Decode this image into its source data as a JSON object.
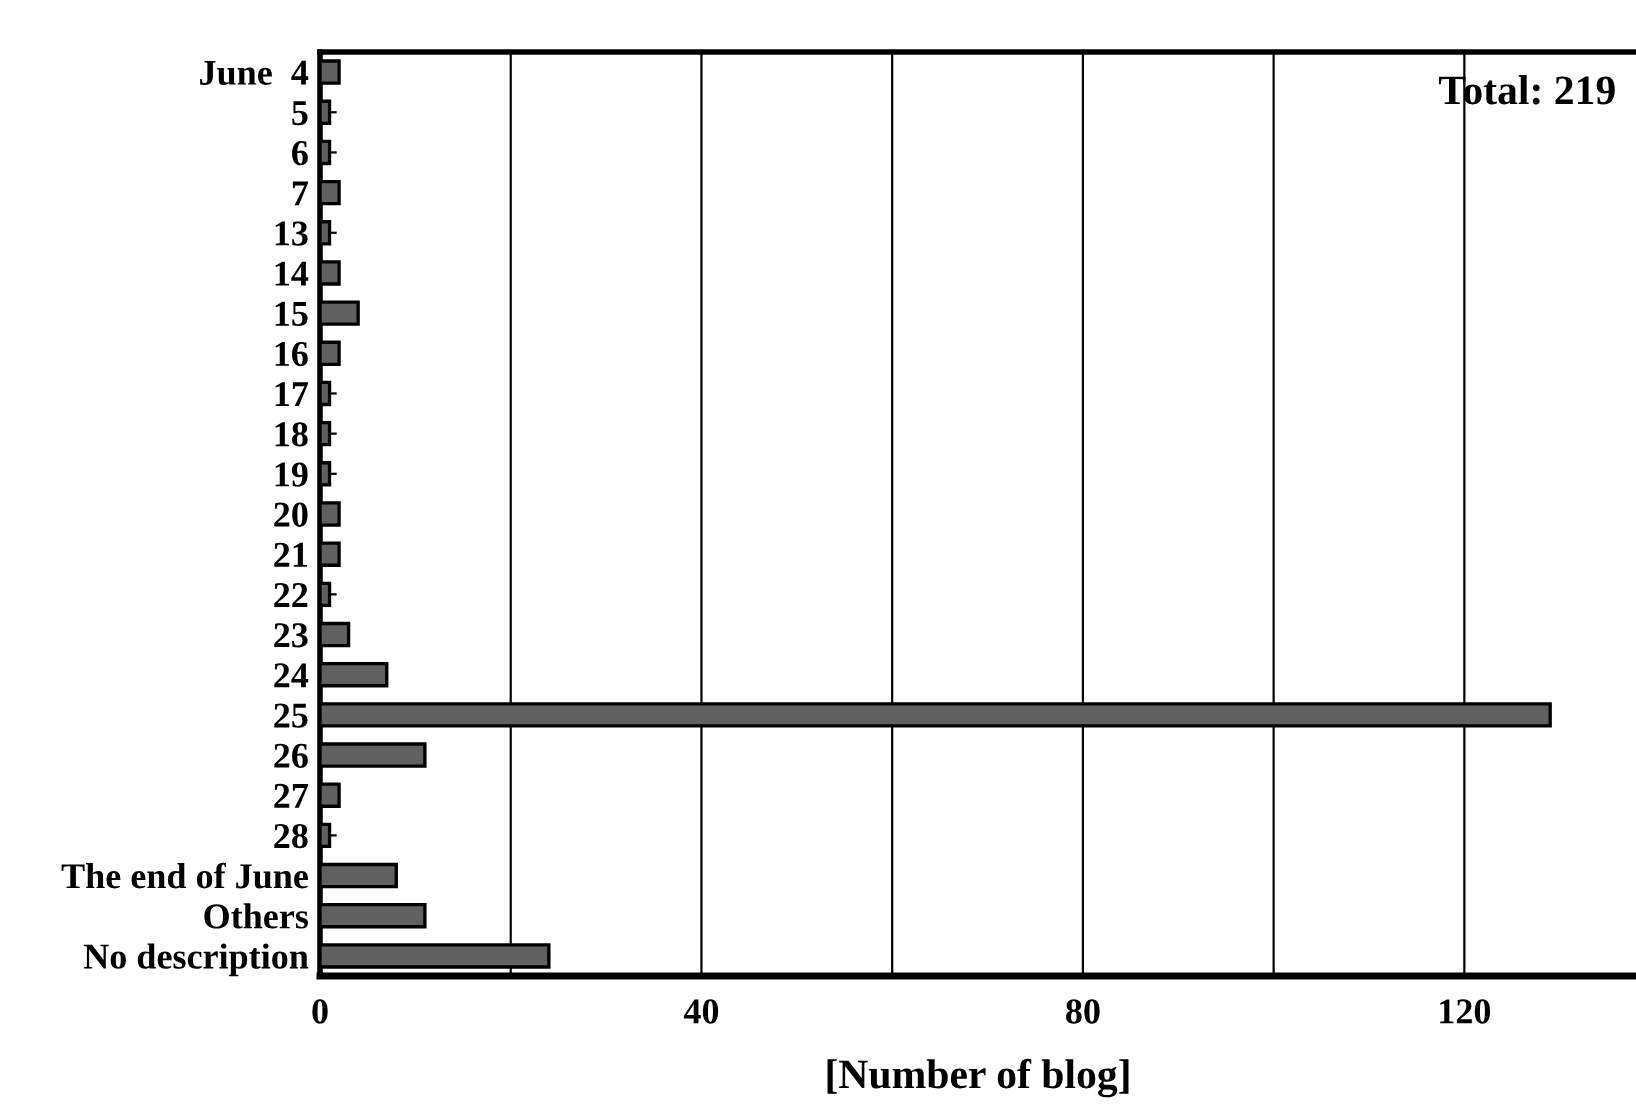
{
  "chart_data": {
    "type": "bar",
    "orientation": "horizontal",
    "categories": [
      "June  4",
      "5",
      "6",
      "7",
      "13",
      "14",
      "15",
      "16",
      "17",
      "18",
      "19",
      "20",
      "21",
      "22",
      "23",
      "24",
      "25",
      "26",
      "27",
      "28",
      "The end of June",
      "Others",
      "No description"
    ],
    "values": [
      2,
      1,
      1,
      2,
      1,
      2,
      4,
      2,
      1,
      1,
      1,
      2,
      2,
      1,
      3,
      7,
      129,
      11,
      2,
      1,
      8,
      11,
      24
    ],
    "color": "#606060",
    "xlim": [
      0,
      138
    ],
    "xticks": [
      0,
      {
        "value": 20,
        "label": null
      },
      40,
      {
        "value": 60,
        "label": null
      },
      80,
      {
        "value": 100,
        "label": null
      },
      120
    ],
    "xlabel": "[Number of blog]",
    "annotations": [
      "Total: 219"
    ],
    "grid": "x"
  }
}
